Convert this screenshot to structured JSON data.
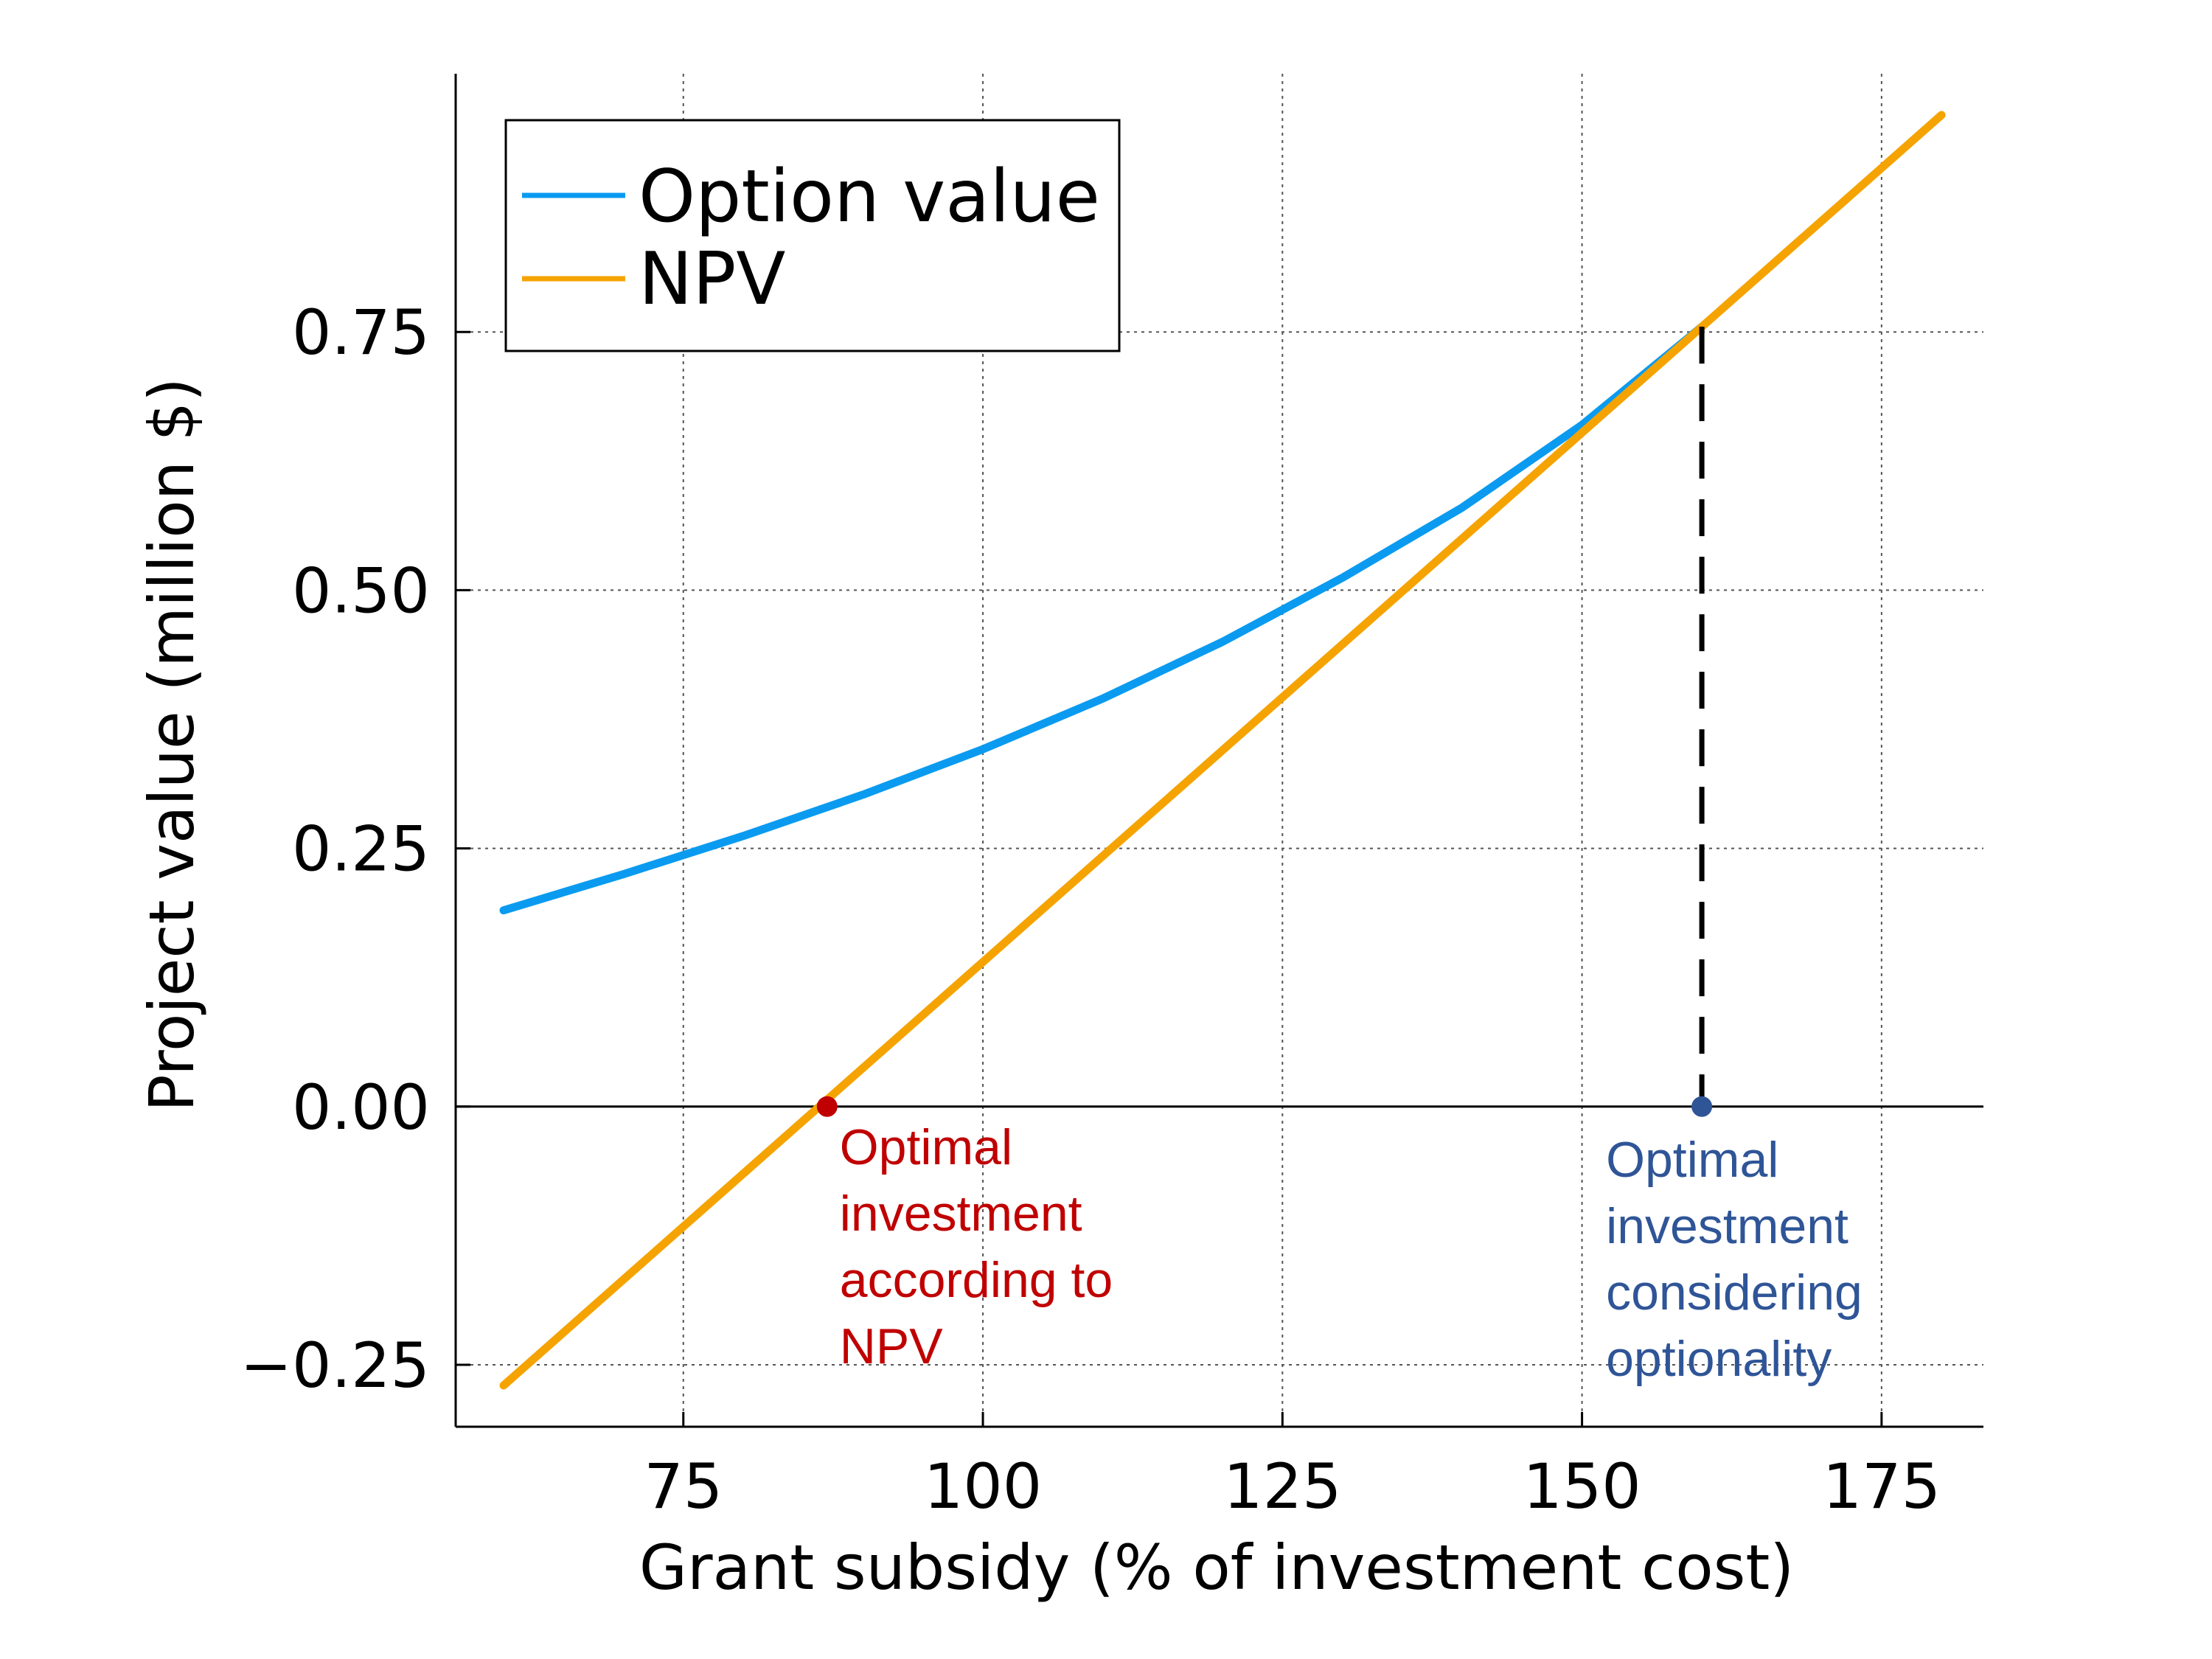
{
  "chart_data": {
    "type": "line",
    "title": "",
    "xlabel": "Grant subsidy (% of investment cost)",
    "ylabel": "Project value (million $)",
    "xlim": [
      56,
      183.5
    ],
    "ylim": [
      -0.31,
      1.0
    ],
    "xticks": [
      75,
      100,
      125,
      150,
      175
    ],
    "xtick_labels": [
      "75",
      "100",
      "125",
      "150",
      "175"
    ],
    "yticks": [
      -0.25,
      0.0,
      0.25,
      0.5,
      0.75
    ],
    "ytick_labels": [
      "−0.25",
      "0.00",
      "0.25",
      "0.50",
      "0.75"
    ],
    "grid": true,
    "grid_style": "dotted",
    "legend_position": "top-left",
    "series": [
      {
        "name": "Option value",
        "color": "#0a9bf0",
        "x": [
          60,
          70,
          80,
          90,
          100,
          110,
          120,
          130,
          140,
          150,
          160
        ],
        "y": [
          0.19,
          0.225,
          0.262,
          0.302,
          0.346,
          0.395,
          0.45,
          0.512,
          0.58,
          0.66,
          0.755
        ]
      },
      {
        "name": "NPV",
        "color": "#f5a300",
        "x": [
          60,
          180
        ],
        "y": [
          -0.27,
          0.96
        ]
      }
    ],
    "vertical_marker": {
      "x": 160,
      "y_from": 0.0,
      "y_to": 0.755,
      "color": "#000000",
      "style": "dashed"
    },
    "points": [
      {
        "x": 87,
        "y": 0.0,
        "color": "#c00000"
      },
      {
        "x": 160,
        "y": 0.0,
        "color": "#2f5597"
      }
    ],
    "annotations": [
      {
        "lines": [
          "Optimal",
          "investment",
          "according to",
          "NPV"
        ],
        "color": "#c00000",
        "anchor_x": 87
      },
      {
        "lines": [
          "Optimal",
          "investment",
          "considering",
          "optionality"
        ],
        "color": "#2f5597",
        "anchor_x": 160
      }
    ]
  }
}
